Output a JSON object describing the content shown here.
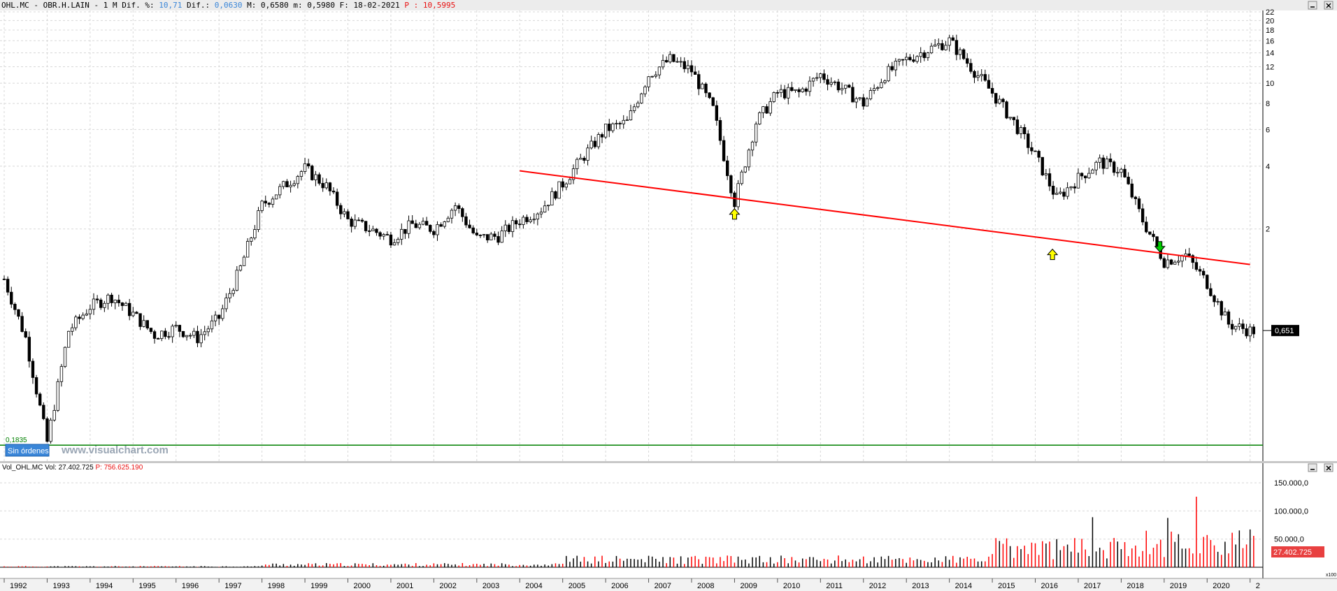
{
  "header": {
    "symbol": "OHL.MC",
    "name": "OBR.H.LAIN",
    "period": "1 M",
    "dif_pct_label": "Dif. %:",
    "dif_pct_value": "10,71",
    "dif_label": "Dif.:",
    "dif_value": "0,0630",
    "high_label": "M:",
    "high_value": "0,6580",
    "low_label": "m:",
    "low_value": "0,5980",
    "date_label": "F:",
    "date_value": "18-02-2021",
    "p_label": "P :",
    "p_value": "10,5995"
  },
  "price_panel": {
    "last_price_label": "0,651",
    "support_label": "0,1835",
    "orders_button": "Sin órdenes",
    "watermark": "www.visualchart.com"
  },
  "volume_panel": {
    "title": "Vol_OHL.MC",
    "vol_label": "Vol:",
    "vol_value": "27.402.725",
    "p_label": "P:",
    "p_value": "756.625.190",
    "last_volume_label": "27.402.725",
    "scale_tag": "x100"
  },
  "colors": {
    "up_candle": "#ffffff",
    "down_candle": "#000000",
    "trendline": "#ff0000",
    "support_line": "#008000",
    "buy_arrow": "#ffff00",
    "sell_arrow": "#00cc00",
    "volume_up": "#000000",
    "volume_down": "#ff0000",
    "header_bg": "#ececec",
    "header_accent_blue": "#3a86d8",
    "header_accent_red": "#e81010"
  },
  "chart_data": [
    {
      "type": "candlestick",
      "scale": "log",
      "ylim": [
        0.16,
        22
      ],
      "y_ticks": [
        22,
        20,
        18,
        16,
        14,
        12,
        10,
        8,
        6,
        4,
        2
      ],
      "x_years": [
        "1992",
        "1993",
        "1994",
        "1995",
        "1996",
        "1997",
        "1998",
        "1999",
        "2000",
        "2001",
        "2002",
        "2003",
        "2004",
        "2005",
        "2006",
        "2007",
        "2008",
        "2009",
        "2010",
        "2011",
        "2012",
        "2013",
        "2014",
        "2015",
        "2016",
        "2017",
        "2018",
        "2019",
        "2020",
        "2"
      ],
      "closes_yearly": [
        {
          "date": "1992.0",
          "close": 1.15
        },
        {
          "date": "1992.5",
          "close": 0.6
        },
        {
          "date": "1993.0",
          "close": 0.19
        },
        {
          "date": "1993.5",
          "close": 0.65
        },
        {
          "date": "1994.0",
          "close": 0.85
        },
        {
          "date": "1994.5",
          "close": 0.95
        },
        {
          "date": "1995.0",
          "close": 0.78
        },
        {
          "date": "1995.5",
          "close": 0.62
        },
        {
          "date": "1996.0",
          "close": 0.67
        },
        {
          "date": "1996.5",
          "close": 0.6
        },
        {
          "date": "1997.0",
          "close": 0.75
        },
        {
          "date": "1997.5",
          "close": 1.3
        },
        {
          "date": "1998.0",
          "close": 2.6
        },
        {
          "date": "1998.5",
          "close": 3.2
        },
        {
          "date": "1999.0",
          "close": 3.9
        },
        {
          "date": "1999.5",
          "close": 3.2
        },
        {
          "date": "2000.0",
          "close": 2.2
        },
        {
          "date": "2000.5",
          "close": 2.0
        },
        {
          "date": "2001.0",
          "close": 1.8
        },
        {
          "date": "2001.5",
          "close": 2.1
        },
        {
          "date": "2002.0",
          "close": 2.0
        },
        {
          "date": "2002.5",
          "close": 2.6
        },
        {
          "date": "2003.0",
          "close": 1.8
        },
        {
          "date": "2003.5",
          "close": 1.85
        },
        {
          "date": "2004.0",
          "close": 2.2
        },
        {
          "date": "2004.5",
          "close": 2.5
        },
        {
          "date": "2005.0",
          "close": 3.3
        },
        {
          "date": "2005.5",
          "close": 4.5
        },
        {
          "date": "2006.0",
          "close": 6.0
        },
        {
          "date": "2006.5",
          "close": 6.5
        },
        {
          "date": "2007.0",
          "close": 11.0
        },
        {
          "date": "2007.5",
          "close": 13.0
        },
        {
          "date": "2008.0",
          "close": 11.5
        },
        {
          "date": "2008.5",
          "close": 7.5
        },
        {
          "date": "2009.0",
          "close": 2.7
        },
        {
          "date": "2009.5",
          "close": 6.5
        },
        {
          "date": "2010.0",
          "close": 9.0
        },
        {
          "date": "2010.5",
          "close": 9.0
        },
        {
          "date": "2011.0",
          "close": 11.0
        },
        {
          "date": "2011.5",
          "close": 9.5
        },
        {
          "date": "2012.0",
          "close": 8.0
        },
        {
          "date": "2012.5",
          "close": 11.0
        },
        {
          "date": "2013.0",
          "close": 13.0
        },
        {
          "date": "2013.5",
          "close": 14.5
        },
        {
          "date": "2014.0",
          "close": 16.0
        },
        {
          "date": "2014.5",
          "close": 12.0
        },
        {
          "date": "2015.0",
          "close": 9.0
        },
        {
          "date": "2015.5",
          "close": 6.5
        },
        {
          "date": "2016.0",
          "close": 4.5
        },
        {
          "date": "2016.5",
          "close": 2.8
        },
        {
          "date": "2017.0",
          "close": 3.5
        },
        {
          "date": "2017.5",
          "close": 4.2
        },
        {
          "date": "2018.0",
          "close": 3.8
        },
        {
          "date": "2018.5",
          "close": 2.2
        },
        {
          "date": "2019.0",
          "close": 1.4
        },
        {
          "date": "2019.5",
          "close": 1.5
        },
        {
          "date": "2020.0",
          "close": 1.1
        },
        {
          "date": "2020.5",
          "close": 0.7
        },
        {
          "date": "2021.0",
          "close": 0.65
        }
      ],
      "trendline": {
        "x": [
          "2004.0",
          "2021.0"
        ],
        "y": [
          3.8,
          1.35
        ]
      },
      "support": 0.1835,
      "signals": [
        {
          "type": "buy",
          "date": "2009.0",
          "price": 2.5
        },
        {
          "type": "buy",
          "date": "2016.4",
          "price": 1.6
        },
        {
          "type": "sell",
          "date": "2018.9",
          "price": 1.55
        }
      ],
      "last": 0.651
    },
    {
      "type": "bar",
      "series": "volume",
      "ylim": [
        0,
        140000
      ],
      "y_ticks": [
        "150.000,0",
        "100.000,0",
        "50.000,0"
      ],
      "last_value": 27402.725
    }
  ]
}
